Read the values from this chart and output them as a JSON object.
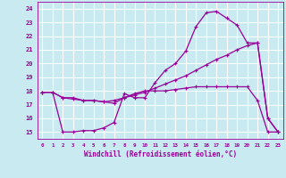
{
  "xlabel": "Windchill (Refroidissement éolien,°C)",
  "background_color": "#c8eaf0",
  "grid_color": "#ffffff",
  "line_color": "#990099",
  "xlim": [
    -0.5,
    23.5
  ],
  "ylim": [
    14.5,
    24.5
  ],
  "yticks": [
    15,
    16,
    17,
    18,
    19,
    20,
    21,
    22,
    23,
    24
  ],
  "xticks": [
    0,
    1,
    2,
    3,
    4,
    5,
    6,
    7,
    8,
    9,
    10,
    11,
    12,
    13,
    14,
    15,
    16,
    17,
    18,
    19,
    20,
    21,
    22,
    23
  ],
  "line1_x": [
    0,
    1,
    2,
    3,
    4,
    5,
    6,
    7,
    8,
    9,
    10,
    11,
    12,
    13,
    14,
    15,
    16,
    17,
    18,
    19,
    20,
    21,
    22,
    23
  ],
  "line1_y": [
    17.9,
    17.9,
    17.5,
    17.5,
    17.3,
    17.3,
    17.2,
    17.1,
    17.5,
    17.8,
    18.0,
    18.0,
    18.0,
    18.1,
    18.2,
    18.3,
    18.3,
    18.3,
    18.3,
    18.3,
    18.3,
    17.3,
    15.0,
    15.0
  ],
  "line2_x": [
    0,
    1,
    2,
    3,
    4,
    5,
    6,
    7,
    8,
    9,
    10,
    11,
    12,
    13,
    14,
    15,
    16,
    17,
    18,
    19,
    20,
    21,
    22,
    23
  ],
  "line2_y": [
    17.9,
    17.9,
    15.0,
    15.0,
    15.1,
    15.1,
    15.3,
    15.7,
    17.8,
    17.5,
    17.5,
    18.6,
    19.5,
    20.0,
    20.9,
    22.7,
    23.7,
    23.8,
    23.3,
    22.8,
    21.5,
    21.5,
    16.0,
    15.0
  ],
  "line3_x": [
    0,
    1,
    2,
    3,
    4,
    5,
    6,
    7,
    8,
    9,
    10,
    11,
    12,
    13,
    14,
    15,
    16,
    17,
    18,
    19,
    20,
    21,
    22,
    23
  ],
  "line3_y": [
    17.9,
    17.9,
    17.5,
    17.4,
    17.3,
    17.3,
    17.2,
    17.3,
    17.5,
    17.7,
    17.9,
    18.2,
    18.5,
    18.8,
    19.1,
    19.5,
    19.9,
    20.3,
    20.6,
    21.0,
    21.3,
    21.5,
    16.0,
    15.0
  ]
}
